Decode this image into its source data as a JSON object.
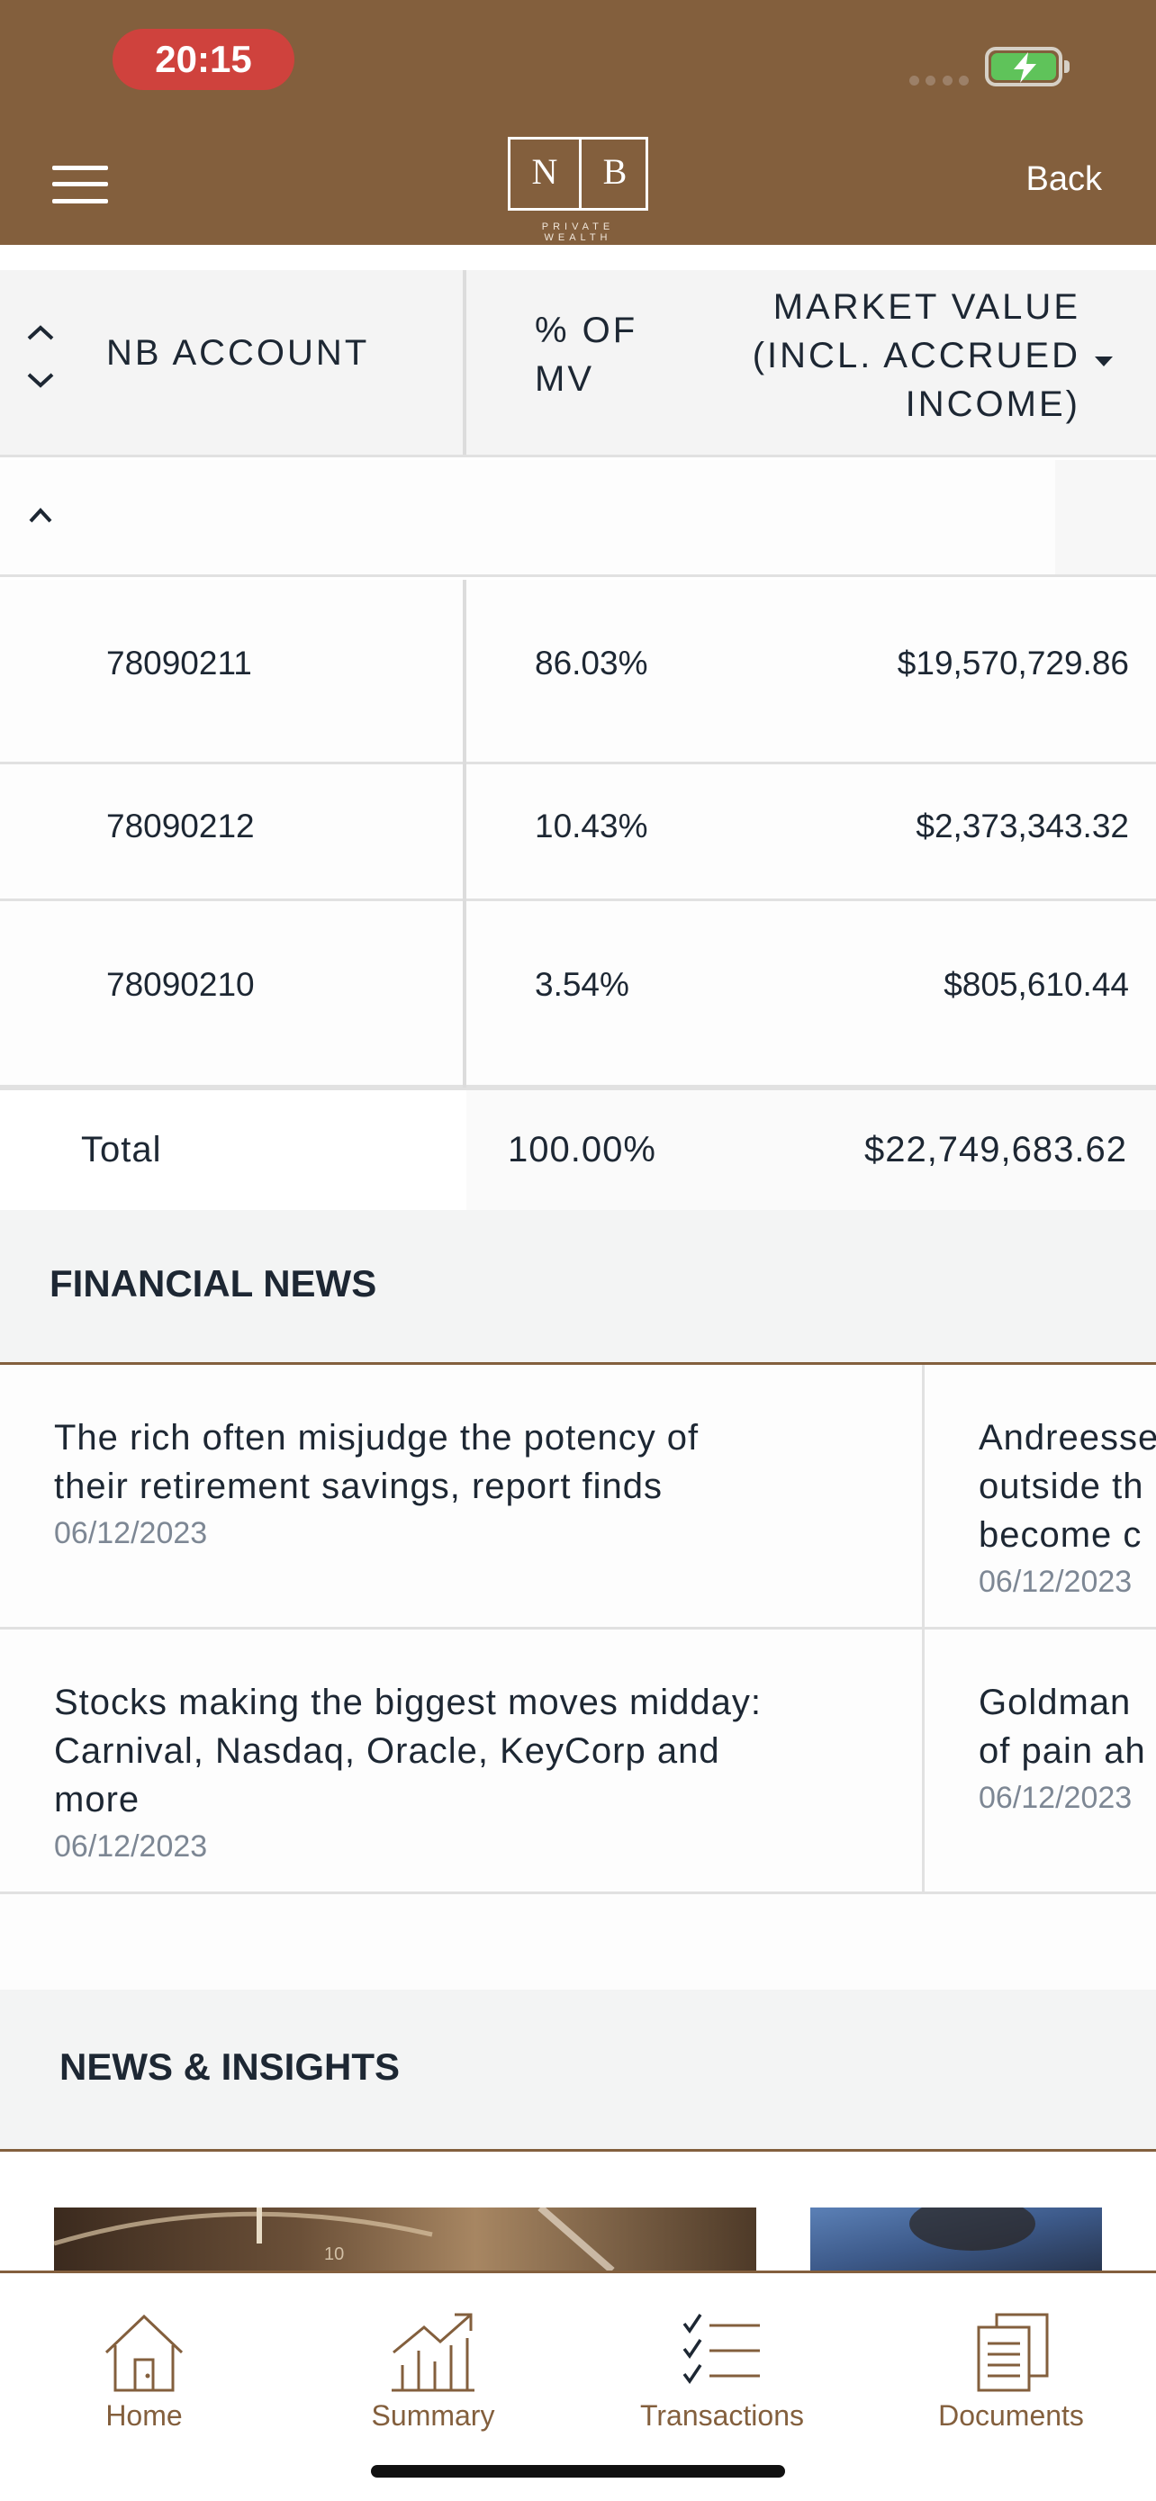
{
  "status_bar": {
    "time": "20:15"
  },
  "header": {
    "logo_left": "N",
    "logo_right": "B",
    "logo_tagline": "PRIVATE WEALTH",
    "back_label": "Back"
  },
  "accounts_table": {
    "columns": {
      "account": "NB ACCOUNT",
      "pct_mv_line1": "% OF",
      "pct_mv_line2": "MV",
      "market_value_line1": "MARKET VALUE",
      "market_value_line2": "(INCL. ACCRUED",
      "market_value_line3": "INCOME)"
    },
    "rows": [
      {
        "account": "78090211",
        "pct": "86.03%",
        "value": "$19,570,729.86"
      },
      {
        "account": "78090212",
        "pct": "10.43%",
        "value": "$2,373,343.32"
      },
      {
        "account": "78090210",
        "pct": "3.54%",
        "value": "$805,610.44"
      }
    ],
    "total": {
      "label": "Total",
      "pct": "100.00%",
      "value": "$22,749,683.62"
    }
  },
  "financial_news": {
    "title": "FINANCIAL NEWS",
    "items": [
      {
        "headline_line1": "The rich often misjudge the potency of",
        "headline_line2": "their retirement savings, report finds",
        "date": "06/12/2023"
      },
      {
        "headline_line1": "Andreesse",
        "headline_line2": "outside th",
        "headline_line3": "become c",
        "date": "06/12/2023"
      },
      {
        "headline_line1": "Stocks making the biggest moves midday:",
        "headline_line2": "Carnival, Nasdaq, Oracle, KeyCorp and",
        "headline_line3": "more",
        "date": "06/12/2023"
      },
      {
        "headline_line1": "Goldman",
        "headline_line2": "of pain ah",
        "date": "06/12/2023"
      }
    ]
  },
  "news_insights": {
    "title": "NEWS & INSIGHTS"
  },
  "tab_bar": {
    "items": [
      {
        "label": "Home",
        "icon": "home-icon"
      },
      {
        "label": "Summary",
        "icon": "chart-icon"
      },
      {
        "label": "Transactions",
        "icon": "checklist-icon"
      },
      {
        "label": "Documents",
        "icon": "documents-icon"
      }
    ]
  },
  "colors": {
    "brand": "#835f3d",
    "time_pill": "#cf423d",
    "battery": "#5fc35a",
    "text": "#1d2733",
    "muted": "#7d8794"
  }
}
